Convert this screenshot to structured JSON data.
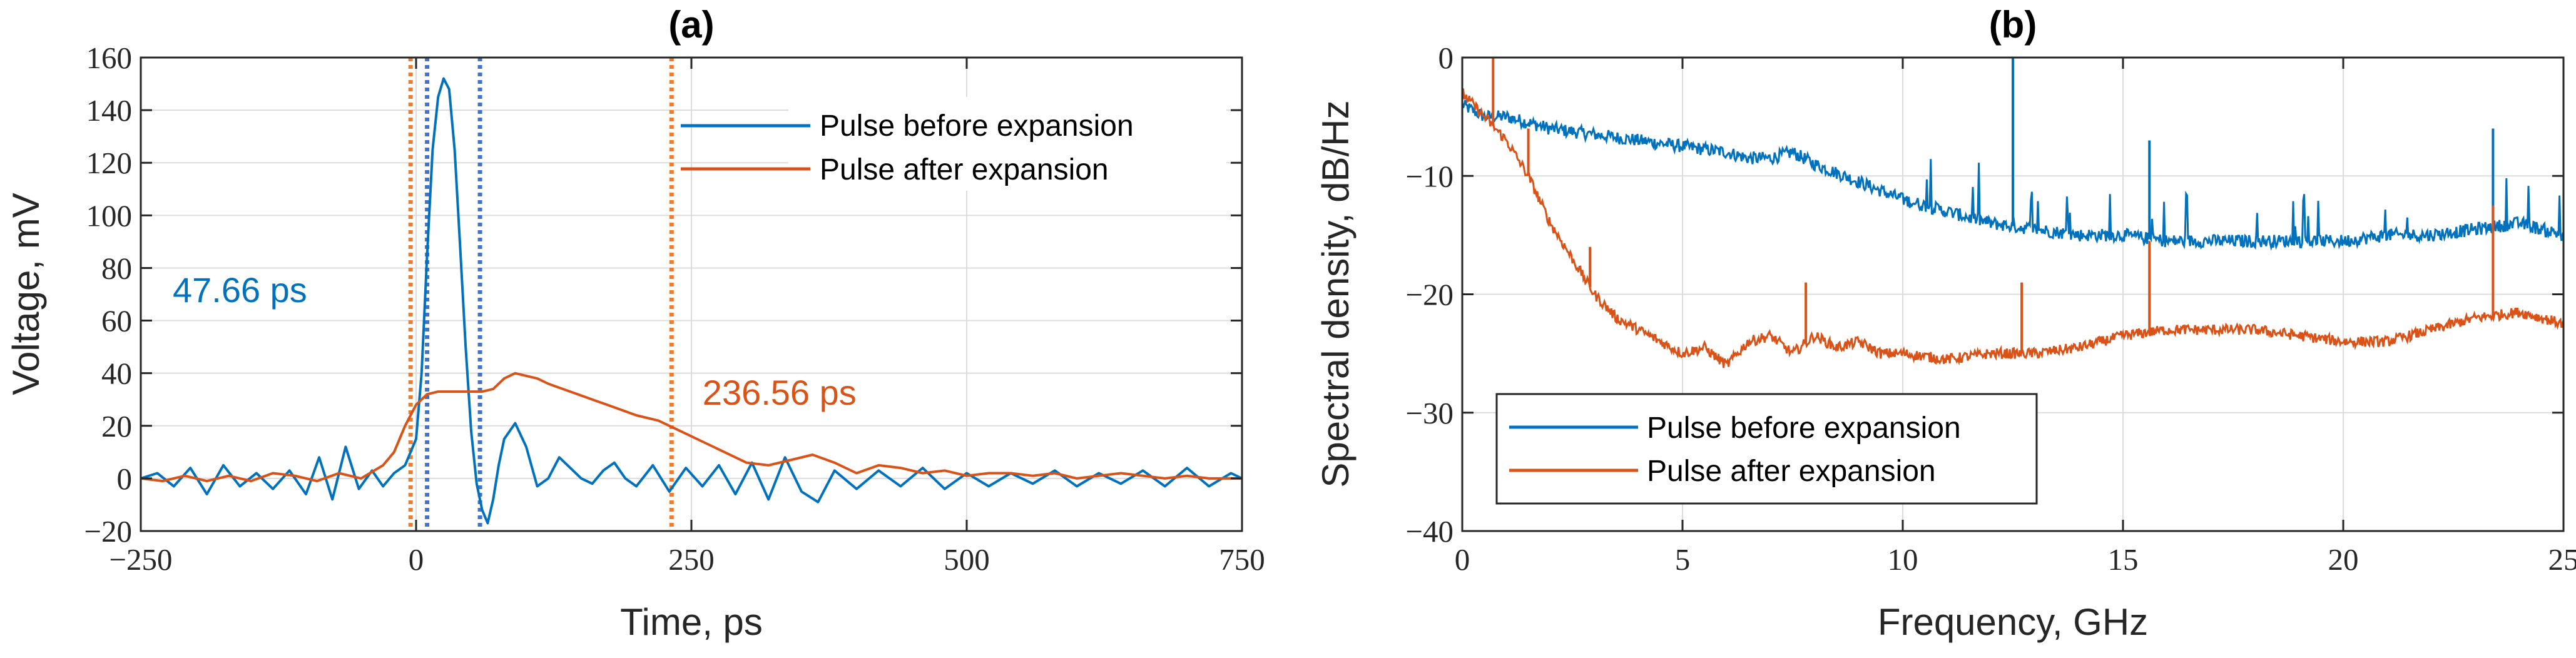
{
  "colors": {
    "blue": "#0072BD",
    "orange": "#D95319",
    "blue_marker": "#4472C4",
    "orange_marker": "#ED7D31"
  },
  "chart_data": [
    {
      "id": "a",
      "type": "line",
      "title": "(a)",
      "xlabel": "Time, ps",
      "ylabel": "Voltage, mV",
      "xlim": [
        -250,
        750
      ],
      "ylim": [
        -20,
        160
      ],
      "xticks": [
        -250,
        0,
        250,
        500,
        750
      ],
      "xtick_labels": [
        "−250",
        "0",
        "250",
        "500",
        "750"
      ],
      "yticks": [
        -20,
        0,
        20,
        40,
        60,
        80,
        100,
        120,
        140,
        160
      ],
      "ytick_labels": [
        "−20",
        "0",
        "20",
        "40",
        "60",
        "80",
        "100",
        "120",
        "140",
        "160"
      ],
      "grid": true,
      "legend_position": "top-right",
      "series": [
        {
          "name": "Pulse before expansion",
          "color": "#0072BD",
          "x": [
            -250,
            -235,
            -220,
            -205,
            -190,
            -175,
            -160,
            -145,
            -130,
            -115,
            -100,
            -88,
            -76,
            -64,
            -52,
            -40,
            -30,
            -20,
            -10,
            0,
            5,
            10,
            15,
            20,
            25,
            30,
            35,
            40,
            45,
            50,
            55,
            60,
            65,
            70,
            75,
            80,
            90,
            100,
            110,
            120,
            130,
            140,
            150,
            160,
            170,
            180,
            190,
            200,
            215,
            230,
            245,
            260,
            275,
            290,
            305,
            320,
            335,
            350,
            365,
            380,
            400,
            420,
            440,
            460,
            480,
            500,
            520,
            540,
            560,
            580,
            600,
            620,
            640,
            660,
            680,
            700,
            720,
            740,
            750
          ],
          "values": [
            0,
            2,
            -3,
            4,
            -6,
            5,
            -3,
            2,
            -4,
            3,
            -6,
            8,
            -8,
            12,
            -4,
            3,
            -3,
            2,
            5,
            15,
            40,
            85,
            125,
            145,
            152,
            148,
            125,
            88,
            50,
            18,
            -2,
            -12,
            -17,
            -8,
            5,
            15,
            21,
            12,
            -3,
            0,
            8,
            4,
            0,
            -2,
            3,
            6,
            0,
            -3,
            5,
            -5,
            4,
            -3,
            5,
            -6,
            6,
            -8,
            8,
            -5,
            -9,
            3,
            -4,
            3,
            -3,
            4,
            -4,
            2,
            -3,
            2,
            -2,
            3,
            -3,
            2,
            -2,
            3,
            -3,
            4,
            -3,
            2,
            0
          ]
        },
        {
          "name": "Pulse after expansion",
          "color": "#D95319",
          "x": [
            -250,
            -230,
            -210,
            -190,
            -170,
            -150,
            -130,
            -110,
            -90,
            -70,
            -50,
            -30,
            -20,
            -10,
            0,
            10,
            20,
            30,
            40,
            50,
            60,
            70,
            80,
            90,
            100,
            110,
            120,
            140,
            160,
            180,
            200,
            220,
            240,
            260,
            280,
            300,
            320,
            340,
            360,
            380,
            400,
            420,
            440,
            460,
            480,
            500,
            520,
            540,
            560,
            580,
            600,
            620,
            640,
            660,
            680,
            700,
            720,
            740,
            750
          ],
          "values": [
            0,
            -1,
            1,
            -1,
            1,
            -1,
            2,
            1,
            -1,
            2,
            0,
            5,
            10,
            20,
            28,
            32,
            33,
            33,
            33,
            33,
            33,
            34,
            38,
            40,
            39,
            38,
            36,
            33,
            30,
            27,
            24,
            22,
            18,
            14,
            10,
            6,
            5,
            7,
            9,
            6,
            2,
            5,
            4,
            2,
            3,
            1,
            2,
            2,
            1,
            2,
            0,
            1,
            2,
            1,
            0,
            1,
            0,
            0,
            0
          ]
        }
      ],
      "markers": [
        {
          "x": -5,
          "color": "#ED7D31"
        },
        {
          "x": 10,
          "color": "#4472C4"
        },
        {
          "x": 58,
          "color": "#4472C4"
        },
        {
          "x": 232,
          "color": "#ED7D31"
        }
      ],
      "annotations": [
        {
          "text": "47.66 ps",
          "color": "#0072BD",
          "x": -160,
          "y": 67
        },
        {
          "text": "236.56 ps",
          "color": "#D95319",
          "x": 330,
          "y": 28
        }
      ]
    },
    {
      "id": "b",
      "type": "line",
      "title": "(b)",
      "xlabel": "Frequency, GHz",
      "ylabel": "Spectral density, dB/Hz",
      "xlim": [
        0,
        25
      ],
      "ylim": [
        -40,
        0
      ],
      "xticks": [
        0,
        5,
        10,
        15,
        20,
        25
      ],
      "xtick_labels": [
        "0",
        "5",
        "10",
        "15",
        "20",
        "25"
      ],
      "yticks": [
        -40,
        -30,
        -20,
        -10,
        0
      ],
      "ytick_labels": [
        "−40",
        "−30",
        "−20",
        "−10",
        "0"
      ],
      "grid": true,
      "legend_position": "bottom-left",
      "series": [
        {
          "name": "Pulse before expansion",
          "color": "#0072BD",
          "x": [
            0,
            0.5,
            1,
            2,
            3,
            4,
            5,
            6,
            6.5,
            7,
            7.5,
            8,
            9,
            10,
            11,
            12,
            13,
            14,
            15,
            16,
            17,
            18,
            19,
            20,
            21,
            22,
            23,
            24,
            25
          ],
          "values": [
            -4,
            -5,
            -5,
            -6,
            -6.5,
            -7,
            -7.5,
            -8,
            -8.5,
            -8.5,
            -8,
            -9,
            -10.5,
            -12,
            -13,
            -14,
            -14.5,
            -15,
            -15,
            -15.5,
            -15.5,
            -15.5,
            -15.5,
            -15.5,
            -15,
            -15,
            -14.5,
            -14,
            -15
          ]
        },
        {
          "name": "Pulse after expansion",
          "color": "#D95319",
          "x": [
            0,
            0.5,
            1,
            1.5,
            2,
            2.5,
            3,
            3.5,
            4,
            4.5,
            5,
            5.5,
            6,
            6.5,
            7,
            7.5,
            8,
            8.5,
            9,
            9.5,
            10,
            11,
            12,
            13,
            14,
            15,
            16,
            17,
            18,
            19,
            20,
            21,
            22,
            23,
            24,
            25
          ],
          "values": [
            -3,
            -5,
            -7,
            -10,
            -14,
            -17,
            -20,
            -22,
            -23,
            -24,
            -25,
            -24.5,
            -26,
            -24,
            -23.5,
            -25,
            -23.5,
            -24.5,
            -24,
            -25,
            -25,
            -25.5,
            -25,
            -25,
            -24.5,
            -23.5,
            -23,
            -23,
            -23,
            -23.5,
            -24,
            -24,
            -23,
            -22,
            -21.5,
            -22.5
          ]
        }
      ],
      "spikes": [
        {
          "series": 0,
          "x": 12.5,
          "y": 0
        },
        {
          "series": 0,
          "x": 15.6,
          "y": -7
        },
        {
          "series": 0,
          "x": 23.4,
          "y": -6
        },
        {
          "series": 1,
          "x": 0.7,
          "y": 0
        },
        {
          "series": 1,
          "x": 1.5,
          "y": -6
        },
        {
          "series": 1,
          "x": 2.9,
          "y": -16
        },
        {
          "series": 1,
          "x": 7.8,
          "y": -19
        },
        {
          "series": 1,
          "x": 12.7,
          "y": -19
        },
        {
          "series": 1,
          "x": 15.6,
          "y": -15.5
        },
        {
          "series": 1,
          "x": 23.4,
          "y": -12.5
        }
      ]
    }
  ]
}
